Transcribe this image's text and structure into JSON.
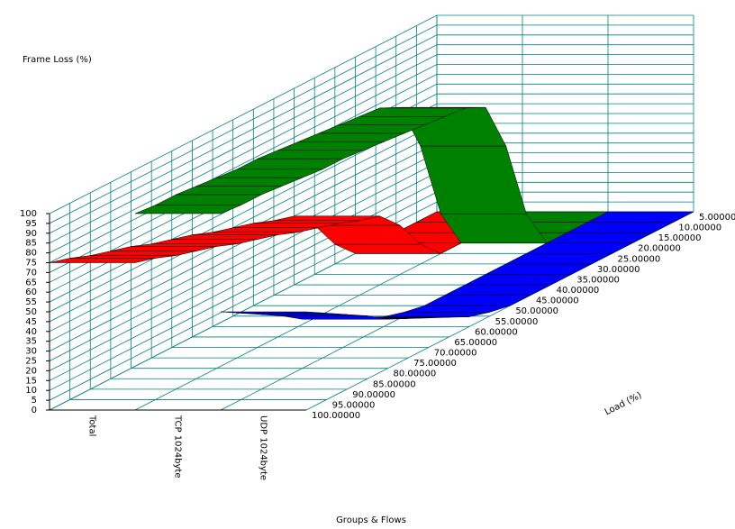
{
  "chart_data": {
    "type": "ribbon3d",
    "ylabel": "Frame Loss (%)",
    "xlabel": "Groups & Flows",
    "zlabel": "Load (%)",
    "categories": [
      "5.00000",
      "10.00000",
      "15.00000",
      "20.00000",
      "25.00000",
      "30.00000",
      "35.00000",
      "40.00000",
      "45.00000",
      "50.00000",
      "55.00000",
      "60.00000",
      "65.00000",
      "70.00000",
      "75.00000",
      "80.00000",
      "85.00000",
      "90.00000",
      "95.00000",
      "100.00000"
    ],
    "series": [
      {
        "name": "Total",
        "color": "#ff0000",
        "values": [
          0,
          0,
          0,
          0,
          0,
          10,
          25,
          35,
          38,
          42,
          45,
          48,
          52,
          55,
          58,
          62,
          65,
          68,
          72,
          75
        ]
      },
      {
        "name": "TCP 1024byte",
        "color": "#008000",
        "values": [
          0,
          0,
          0,
          0,
          20,
          60,
          85,
          90,
          91,
          92,
          93,
          94,
          95,
          96,
          96,
          97,
          98,
          99,
          99,
          100
        ]
      },
      {
        "name": "UDP 1024byte",
        "color": "#0000ff",
        "values": [
          0,
          0,
          0,
          0,
          0,
          0,
          0,
          0,
          0,
          0,
          2,
          5,
          10,
          15,
          20,
          25,
          32,
          38,
          44,
          50
        ]
      }
    ],
    "ylim": [
      0,
      100
    ],
    "yticks": [
      0,
      5,
      10,
      15,
      20,
      25,
      30,
      35,
      40,
      45,
      50,
      55,
      60,
      65,
      70,
      75,
      80,
      85,
      90,
      95,
      100
    ],
    "grid": true,
    "grid_color": "#008080"
  }
}
